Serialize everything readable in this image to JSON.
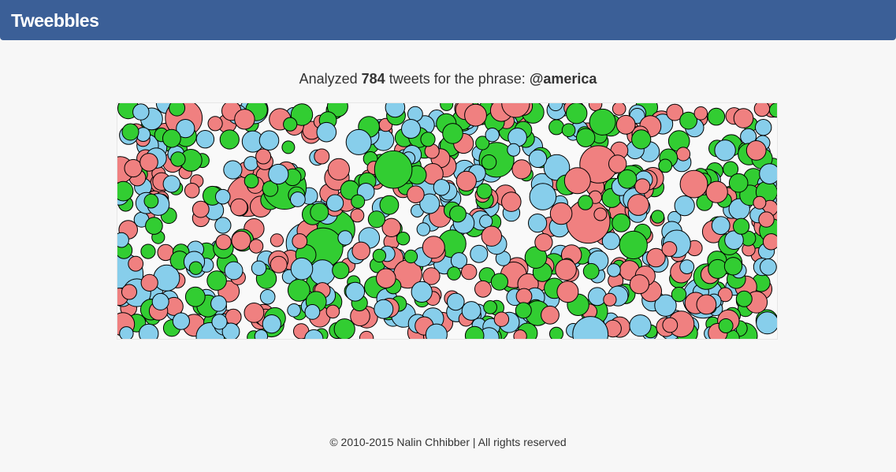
{
  "navbar": {
    "brand": "Tweebbles",
    "color": "#3b5f97"
  },
  "summary": {
    "prefix": "Analyzed",
    "tweet_count": "784",
    "middle": "tweets for the phrase:",
    "phrase": "@america"
  },
  "bubbles": {
    "total": 784,
    "categories": [
      {
        "color": "#f08080"
      },
      {
        "color": "#32cd32"
      },
      {
        "color": "#87ceeb"
      }
    ],
    "outline_color": "#000000"
  },
  "footer": {
    "copyright": "© 2010-2015 Nalin Chhibber | All rights reserved"
  }
}
